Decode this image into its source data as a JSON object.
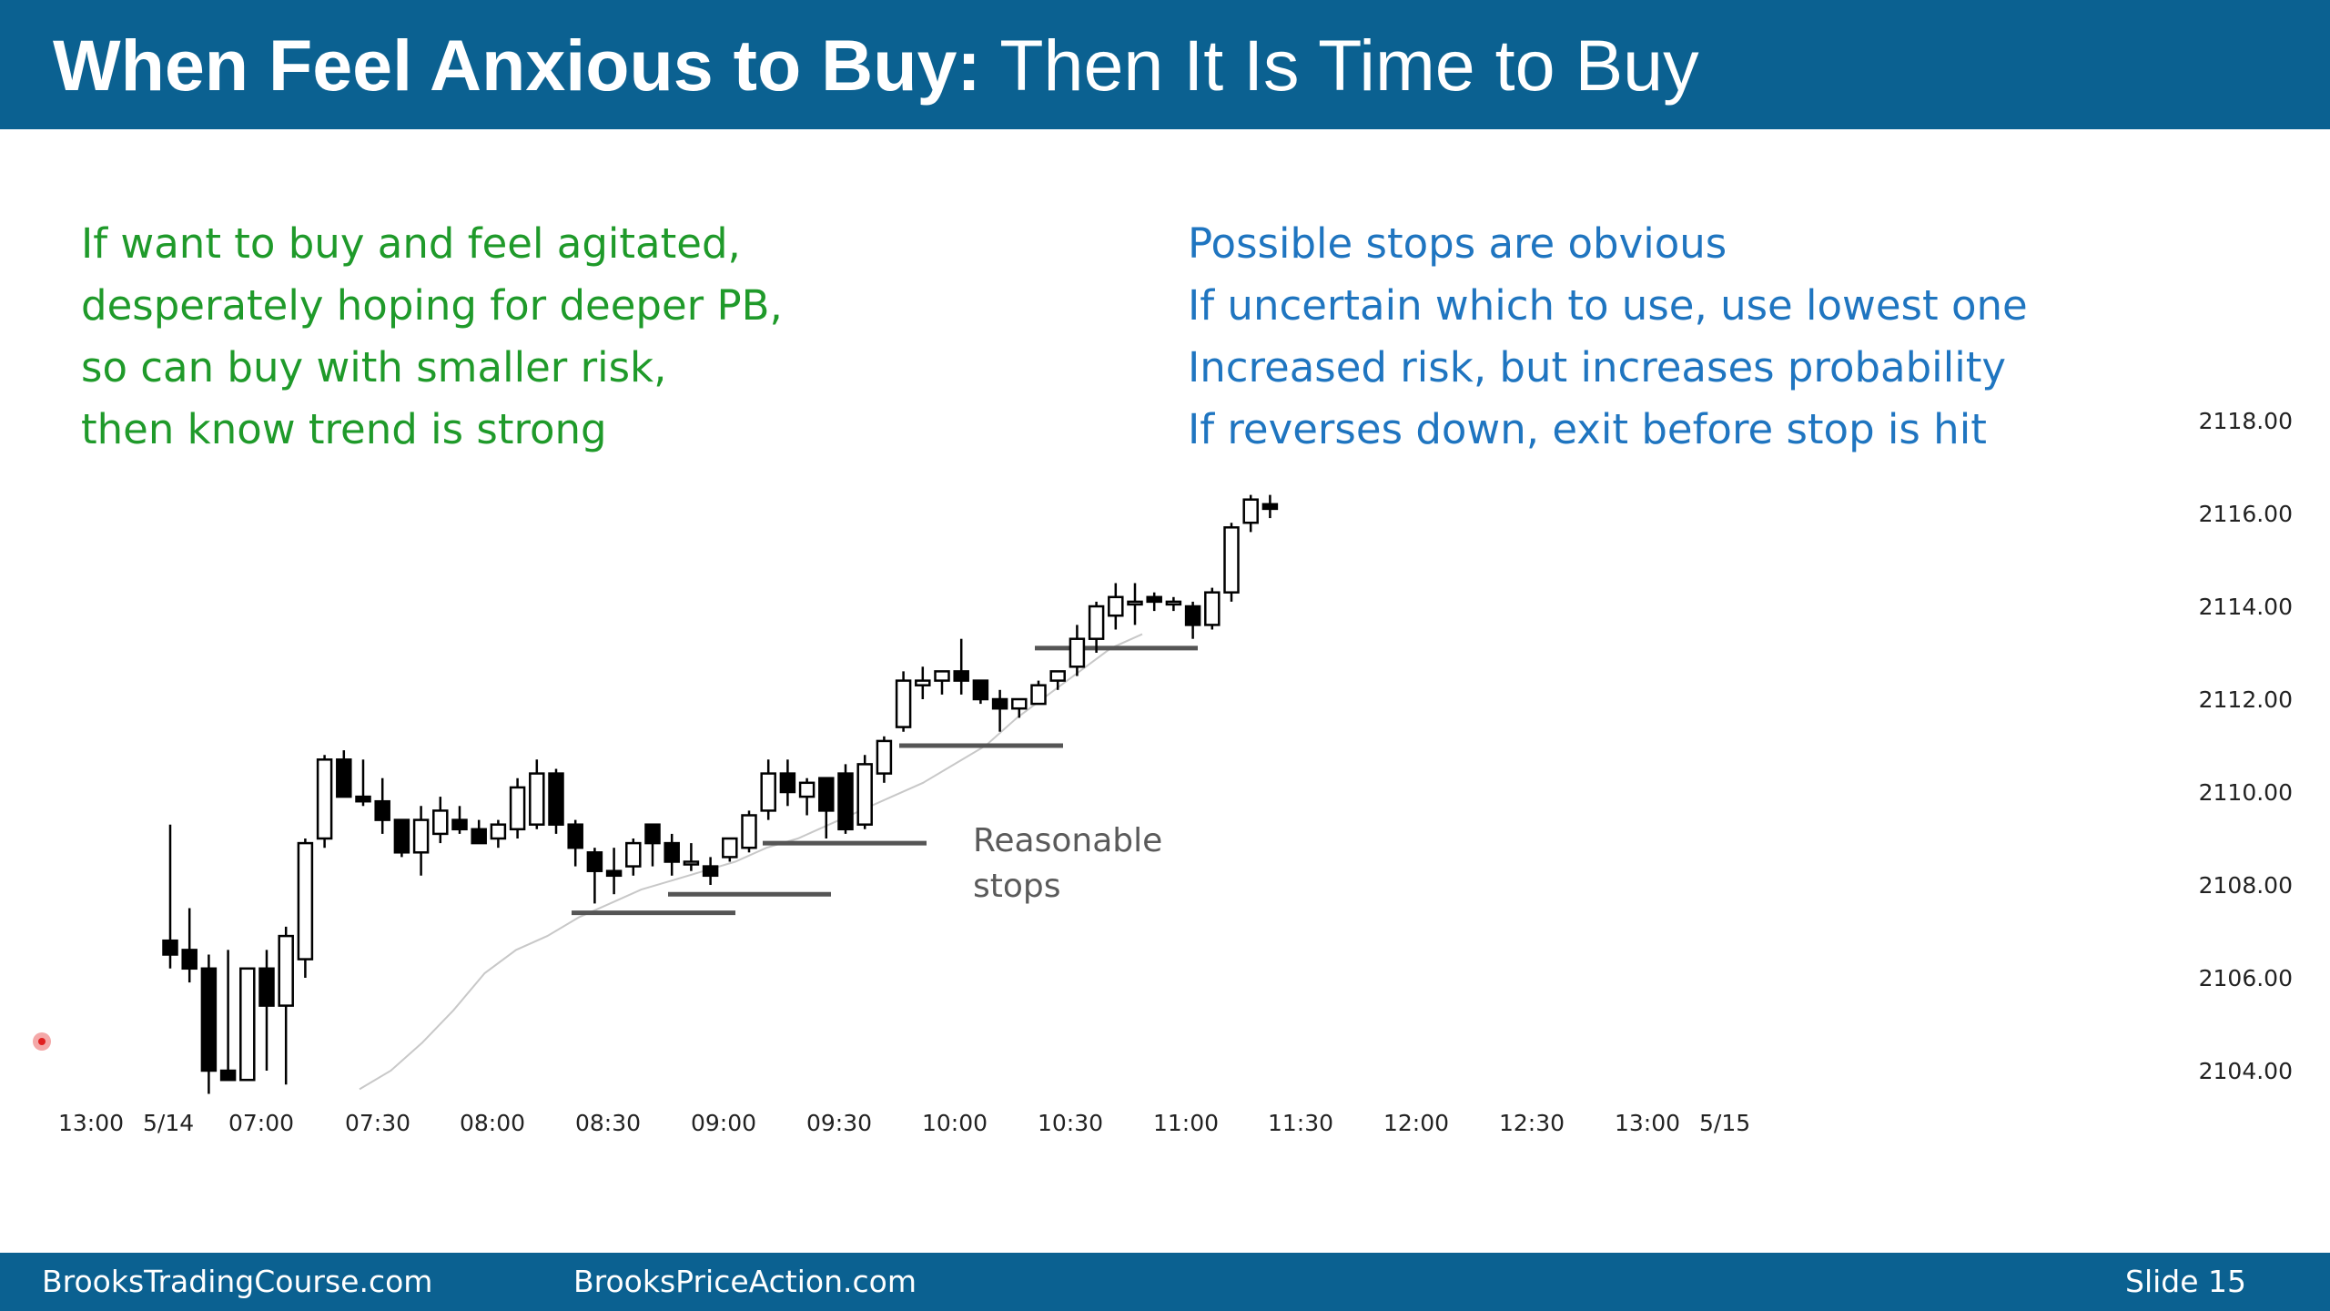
{
  "slide": {
    "title_bold": "When Feel Anxious to Buy:",
    "title_rest": "Then It Is Time to Buy",
    "left_bullets": [
      "If want to buy and feel agitated,",
      "desperately hoping for deeper PB,",
      "so can buy with smaller risk,",
      "then know trend is strong"
    ],
    "right_bullets": [
      "Possible stops are obvious",
      "If uncertain which to use, use lowest one",
      "Increased risk, but increases probability",
      "If reverses down, exit before stop is hit"
    ],
    "annotation": [
      "Reasonable",
      "stops"
    ],
    "footer": {
      "left": "BrooksTradingCourse.com",
      "middle": "BrooksPriceAction.com",
      "right": "Slide  15"
    },
    "colors": {
      "header": "#0b6191",
      "left_text": "#1f9a2a",
      "right_text": "#1f75c0"
    }
  },
  "chart_data": {
    "type": "candlestick",
    "y_ticks": [
      "2118.00",
      "2116.00",
      "2114.00",
      "2112.00",
      "2110.00",
      "2108.00",
      "2106.00",
      "2104.00"
    ],
    "ylim": [
      2103.5,
      2118.2
    ],
    "x_ticks": [
      "13:00",
      "5/14",
      "07:00",
      "07:30",
      "08:00",
      "08:30",
      "09:00",
      "09:30",
      "10:00",
      "10:30",
      "11:00",
      "11:30",
      "12:00",
      "12:30",
      "13:00",
      "5/15"
    ],
    "candles": [
      {
        "o": 2106.8,
        "h": 2109.3,
        "l": 2106.2,
        "c": 2106.5
      },
      {
        "o": 2106.6,
        "h": 2107.5,
        "l": 2105.9,
        "c": 2106.2
      },
      {
        "o": 2106.2,
        "h": 2106.5,
        "l": 2103.5,
        "c": 2104.0
      },
      {
        "o": 2104.0,
        "h": 2106.6,
        "l": 2103.8,
        "c": 2103.8
      },
      {
        "o": 2103.8,
        "h": 2106.2,
        "l": 2103.8,
        "c": 2106.2
      },
      {
        "o": 2106.2,
        "h": 2106.6,
        "l": 2104.0,
        "c": 2105.4
      },
      {
        "o": 2105.4,
        "h": 2107.1,
        "l": 2103.7,
        "c": 2106.9
      },
      {
        "o": 2106.4,
        "h": 2109.0,
        "l": 2106.0,
        "c": 2108.9
      },
      {
        "o": 2109.0,
        "h": 2110.8,
        "l": 2108.8,
        "c": 2110.7
      },
      {
        "o": 2110.7,
        "h": 2110.9,
        "l": 2110.0,
        "c": 2109.9
      },
      {
        "o": 2109.9,
        "h": 2110.7,
        "l": 2109.7,
        "c": 2109.8
      },
      {
        "o": 2109.8,
        "h": 2110.3,
        "l": 2109.1,
        "c": 2109.4
      },
      {
        "o": 2109.4,
        "h": 2109.4,
        "l": 2108.6,
        "c": 2108.7
      },
      {
        "o": 2108.7,
        "h": 2109.7,
        "l": 2108.2,
        "c": 2109.4
      },
      {
        "o": 2109.1,
        "h": 2109.9,
        "l": 2108.9,
        "c": 2109.6
      },
      {
        "o": 2109.4,
        "h": 2109.7,
        "l": 2109.1,
        "c": 2109.2
      },
      {
        "o": 2109.2,
        "h": 2109.4,
        "l": 2108.9,
        "c": 2108.9
      },
      {
        "o": 2109.0,
        "h": 2109.4,
        "l": 2108.8,
        "c": 2109.3
      },
      {
        "o": 2109.2,
        "h": 2110.3,
        "l": 2109.0,
        "c": 2110.1
      },
      {
        "o": 2109.3,
        "h": 2110.7,
        "l": 2109.2,
        "c": 2110.4
      },
      {
        "o": 2110.4,
        "h": 2110.5,
        "l": 2109.1,
        "c": 2109.3
      },
      {
        "o": 2109.3,
        "h": 2109.4,
        "l": 2108.4,
        "c": 2108.8
      },
      {
        "o": 2108.7,
        "h": 2108.8,
        "l": 2107.6,
        "c": 2108.3
      },
      {
        "o": 2108.3,
        "h": 2108.8,
        "l": 2107.8,
        "c": 2108.2
      },
      {
        "o": 2108.4,
        "h": 2109.0,
        "l": 2108.2,
        "c": 2108.9
      },
      {
        "o": 2109.3,
        "h": 2109.3,
        "l": 2108.4,
        "c": 2108.9
      },
      {
        "o": 2108.9,
        "h": 2109.1,
        "l": 2108.2,
        "c": 2108.5
      },
      {
        "o": 2108.5,
        "h": 2108.9,
        "l": 2108.3,
        "c": 2108.5
      },
      {
        "o": 2108.4,
        "h": 2108.6,
        "l": 2108.0,
        "c": 2108.2
      },
      {
        "o": 2108.6,
        "h": 2109.0,
        "l": 2108.5,
        "c": 2109.0
      },
      {
        "o": 2108.8,
        "h": 2109.6,
        "l": 2108.7,
        "c": 2109.5
      },
      {
        "o": 2109.6,
        "h": 2110.7,
        "l": 2109.4,
        "c": 2110.4
      },
      {
        "o": 2110.4,
        "h": 2110.7,
        "l": 2109.7,
        "c": 2110.0
      },
      {
        "o": 2109.9,
        "h": 2110.3,
        "l": 2109.5,
        "c": 2110.2
      },
      {
        "o": 2110.3,
        "h": 2110.3,
        "l": 2109.0,
        "c": 2109.6
      },
      {
        "o": 2110.4,
        "h": 2110.6,
        "l": 2109.1,
        "c": 2109.2
      },
      {
        "o": 2109.3,
        "h": 2110.8,
        "l": 2109.2,
        "c": 2110.6
      },
      {
        "o": 2110.4,
        "h": 2111.2,
        "l": 2110.2,
        "c": 2111.1
      },
      {
        "o": 2111.4,
        "h": 2112.6,
        "l": 2111.3,
        "c": 2112.4
      },
      {
        "o": 2112.3,
        "h": 2112.7,
        "l": 2112.0,
        "c": 2112.4
      },
      {
        "o": 2112.4,
        "h": 2112.6,
        "l": 2112.1,
        "c": 2112.6
      },
      {
        "o": 2112.6,
        "h": 2113.3,
        "l": 2112.1,
        "c": 2112.4
      },
      {
        "o": 2112.4,
        "h": 2112.4,
        "l": 2111.9,
        "c": 2112.0
      },
      {
        "o": 2112.0,
        "h": 2112.2,
        "l": 2111.3,
        "c": 2111.8
      },
      {
        "o": 2111.8,
        "h": 2112.0,
        "l": 2111.6,
        "c": 2112.0
      },
      {
        "o": 2111.9,
        "h": 2112.4,
        "l": 2111.9,
        "c": 2112.3
      },
      {
        "o": 2112.4,
        "h": 2112.6,
        "l": 2112.2,
        "c": 2112.6
      },
      {
        "o": 2112.7,
        "h": 2113.6,
        "l": 2112.5,
        "c": 2113.3
      },
      {
        "o": 2113.3,
        "h": 2114.1,
        "l": 2113.0,
        "c": 2114.0
      },
      {
        "o": 2113.8,
        "h": 2114.5,
        "l": 2113.5,
        "c": 2114.2
      },
      {
        "o": 2114.1,
        "h": 2114.5,
        "l": 2113.6,
        "c": 2114.1
      },
      {
        "o": 2114.2,
        "h": 2114.3,
        "l": 2113.9,
        "c": 2114.1
      },
      {
        "o": 2114.1,
        "h": 2114.2,
        "l": 2113.9,
        "c": 2114.1
      },
      {
        "o": 2114.0,
        "h": 2114.1,
        "l": 2113.3,
        "c": 2113.6
      },
      {
        "o": 2113.6,
        "h": 2114.4,
        "l": 2113.5,
        "c": 2114.3
      },
      {
        "o": 2114.3,
        "h": 2115.8,
        "l": 2114.1,
        "c": 2115.7
      },
      {
        "o": 2115.8,
        "h": 2116.4,
        "l": 2115.6,
        "c": 2116.3
      },
      {
        "o": 2116.2,
        "h": 2116.4,
        "l": 2115.9,
        "c": 2116.1
      }
    ],
    "ema": [
      2103.6,
      2104.0,
      2104.6,
      2105.3,
      2106.1,
      2106.6,
      2106.9,
      2107.3,
      2107.6,
      2107.9,
      2108.1,
      2108.3,
      2108.5,
      2108.8,
      2109.0,
      2109.3,
      2109.6,
      2109.9,
      2110.2,
      2110.6,
      2111.0,
      2111.6,
      2112.1,
      2112.6,
      2113.1,
      2113.4
    ],
    "stops": [
      2107.4,
      2107.8,
      2108.9,
      2111.0,
      2113.1
    ]
  }
}
